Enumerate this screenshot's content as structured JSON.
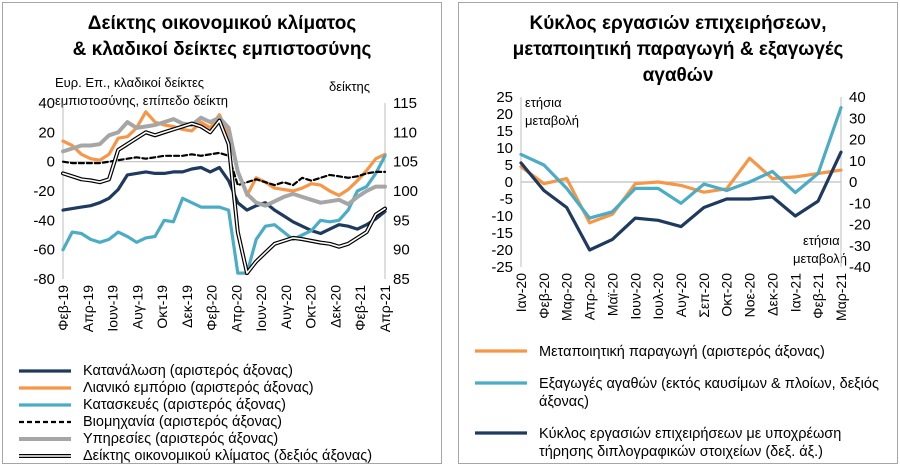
{
  "left": {
    "title_line1": "Δείκτης οικονομικού κλίματος",
    "title_line2": "& κλαδικοί δείκτες εμπιστοσύνης",
    "note_left_line1": "Ευρ. Επ., κλαδικοί δείκτες",
    "note_left_line2": "εμπιστοσύνης, επίπεδο δείκτη",
    "note_right": "δείκτης"
  },
  "right": {
    "title_line1": "Κύκλος εργασιών επιχειρήσεων,",
    "title_line2": "μεταποιητική παραγωγή & εξαγωγές",
    "title_line3": "αγαθών",
    "note_left_line1": "ετήσια",
    "note_left_line2": "μεταβολή",
    "note_right_line1": "ετήσια",
    "note_right_line2": "μεταβολή"
  },
  "colors": {
    "navy": "#1f3a5f",
    "orange": "#f79646",
    "teal": "#4bacc6",
    "grey": "#a6a6a6",
    "black": "#000000"
  },
  "chart_data": [
    {
      "type": "line",
      "x_tick_labels": [
        "Φεβ-19",
        "Απρ-19",
        "Ιουν-19",
        "Αυγ-19",
        "Οκτ-19",
        "Δεκ-19",
        "Φεβ-20",
        "Απρ-20",
        "Ιουν-20",
        "Αυγ-20",
        "Οκτ-20",
        "Δεκ-20",
        "Φεβ-21",
        "Απρ-21"
      ],
      "y_left": {
        "min": -80,
        "max": 40,
        "ticks": [
          -80,
          -60,
          -40,
          -20,
          0,
          20,
          40
        ]
      },
      "y_right": {
        "min": 85,
        "max": 115,
        "ticks": [
          85,
          90,
          95,
          100,
          105,
          110,
          115
        ]
      },
      "series": [
        {
          "name": "Κατανάλωση (αριστερός άξονας)",
          "axis": "left",
          "style": "navy",
          "values": [
            -33,
            -32,
            -31,
            -30,
            -28,
            -25,
            -19,
            -9,
            -8,
            -7,
            -8,
            -8,
            -7,
            -7,
            -5,
            -4,
            -7,
            -4,
            -13,
            -28,
            -33,
            -30,
            -28,
            -33,
            -37,
            -41,
            -44,
            -47,
            -49,
            -46,
            -43,
            -44,
            -46,
            -43,
            -39,
            -34
          ]
        },
        {
          "name": "Λιανικό εμπόριο (αριστερός άξονας)",
          "axis": "left",
          "style": "orange",
          "values": [
            14,
            11,
            5,
            2,
            1,
            5,
            16,
            17,
            23,
            34,
            27,
            25,
            24,
            22,
            21,
            27,
            23,
            32,
            18,
            -6,
            -23,
            -11,
            -14,
            -18,
            -19,
            -20,
            -18,
            -15,
            -16,
            -20,
            -23,
            -19,
            -13,
            -6,
            2,
            5
          ]
        },
        {
          "name": "Κατασκευές (αριστερός άξονας)",
          "axis": "left",
          "style": "teal",
          "values": [
            -60,
            -48,
            -49,
            -53,
            -55,
            -53,
            -48,
            -51,
            -55,
            -52,
            -51,
            -40,
            -41,
            -25,
            -28,
            -31,
            -31,
            -31,
            -33,
            -76,
            -76,
            -53,
            -44,
            -43,
            -48,
            -53,
            -50,
            -47,
            -40,
            -41,
            -40,
            -33,
            -20,
            -17,
            -8,
            4
          ]
        },
        {
          "name": "Βιομηχανία (αριστερός άξονας)",
          "axis": "left",
          "style": "dash",
          "values": [
            0,
            -1,
            -1,
            -1,
            -1,
            0,
            1,
            2,
            3,
            2,
            3,
            4,
            4,
            4,
            5,
            4,
            5,
            6,
            4,
            -16,
            -14,
            -12,
            -14,
            -16,
            -14,
            -16,
            -11,
            -13,
            -11,
            -9,
            -10,
            -11,
            -10,
            -8,
            -7,
            -7
          ]
        },
        {
          "name": "Υπηρεσίες (αριστερός άξονας)",
          "axis": "left",
          "style": "grey",
          "values": [
            7,
            9,
            11,
            11,
            12,
            18,
            20,
            27,
            23,
            24,
            25,
            27,
            29,
            26,
            25,
            30,
            27,
            30,
            23,
            -7,
            -22,
            -28,
            -30,
            -27,
            -24,
            -22,
            -24,
            -26,
            -28,
            -27,
            -26,
            -29,
            -24,
            -20,
            -17,
            -17
          ]
        },
        {
          "name": "Δείκτης οικονομικού κλίματος (δεξιός άξονας)",
          "axis": "right",
          "style": "double",
          "values": [
            103,
            102.5,
            102,
            101.8,
            101.5,
            102,
            107,
            108,
            109,
            110,
            109.5,
            110,
            110.5,
            111,
            111.5,
            111,
            110,
            112,
            108,
            93,
            86,
            88,
            89.5,
            91,
            91.5,
            92,
            91.8,
            91.5,
            91.2,
            91,
            90.5,
            91,
            92,
            93,
            96,
            97
          ]
        }
      ]
    },
    {
      "type": "line",
      "x_tick_labels": [
        "Ιαν-20",
        "Φεβ-20",
        "Μαρ-20",
        "Απρ-20",
        "Μαϊ-20",
        "Ιουν-20",
        "Ιουλ-20",
        "Αυγ-20",
        "Σεπ-20",
        "Οκτ-20",
        "Νοε-20",
        "Δεκ-20",
        "Ιαν-21",
        "Φεβ-21",
        "Μαρ-21"
      ],
      "y_left": {
        "min": -25,
        "max": 25,
        "ticks": [
          -25,
          -20,
          -15,
          -10,
          -5,
          0,
          5,
          10,
          15,
          20,
          25
        ]
      },
      "y_right": {
        "min": -40,
        "max": 40,
        "ticks": [
          -40,
          -30,
          -20,
          -10,
          0,
          10,
          20,
          30,
          40
        ]
      },
      "series": [
        {
          "name": "Μεταποιητική παραγωγή (αριστερός άξονας)",
          "axis": "left",
          "style": "orange",
          "values": [
            4.5,
            -0.5,
            1,
            -12,
            -9.5,
            -0.5,
            0,
            -1,
            -3,
            -2,
            7,
            1,
            1.5,
            2.5,
            3.5
          ]
        },
        {
          "name": "Εξαγωγές αγαθών (εκτός καυσίμων & πλοίων, δεξιός άξονας)",
          "axis": "right",
          "style": "teal",
          "values": [
            13,
            8,
            -3,
            -17,
            -14,
            -3,
            -3,
            -10,
            -1,
            -4,
            0,
            5,
            -5,
            4,
            35
          ]
        },
        {
          "name": "Κύκλος εργασιών επιχειρήσεων με υποχρέωση τήρησης διπλογραφικών στοιχείων (δεξ. άξ.)",
          "axis": "right",
          "style": "navy",
          "values": [
            9,
            -4,
            -12,
            -32,
            -27,
            -17,
            -18,
            -21,
            -12,
            -8,
            -8,
            -7,
            -16,
            -9,
            14
          ]
        }
      ]
    }
  ]
}
